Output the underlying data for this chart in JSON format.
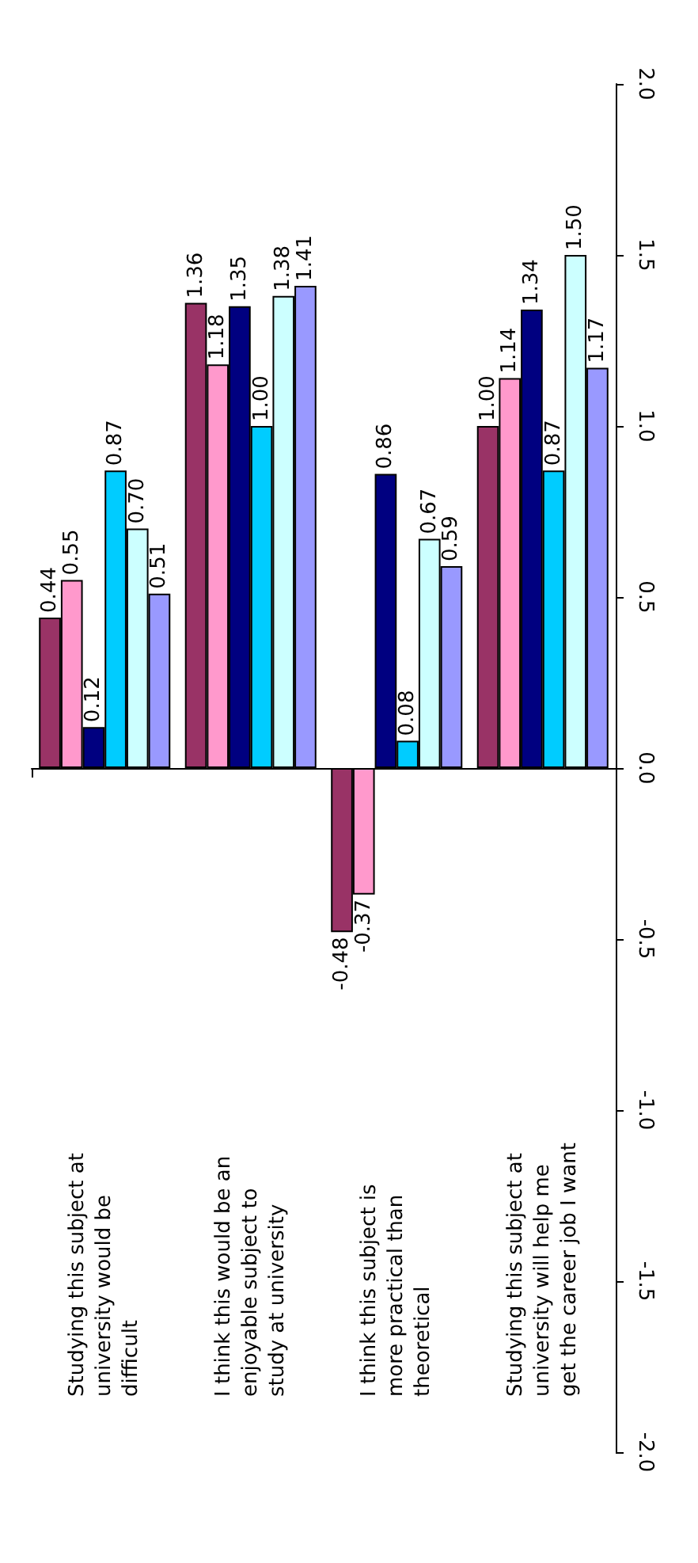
{
  "chart_data": {
    "type": "bar",
    "categories": [
      "Studying this subject at university would be difficult",
      "I think this would be an enjoyable subject to study at university",
      "I think this subject is more practical than theoretical",
      "Studying this subject at university will help me get the career job I want"
    ],
    "series": [
      {
        "color": "#993366",
        "values": [
          0.44,
          1.36,
          -0.48,
          1.0
        ],
        "value_labels": [
          "0.44",
          "1.36",
          "-0.48",
          "1.00"
        ]
      },
      {
        "color": "#ff99cc",
        "values": [
          0.55,
          1.18,
          -0.37,
          1.14
        ],
        "value_labels": [
          "0.55",
          "1.18",
          "-0.37",
          "1.14"
        ]
      },
      {
        "color": "#000080",
        "values": [
          0.12,
          1.35,
          0.86,
          1.34
        ],
        "value_labels": [
          "0.12",
          "1.35",
          "0.86",
          "1.34"
        ]
      },
      {
        "color": "#00ccff",
        "values": [
          0.87,
          1.0,
          0.08,
          0.87
        ],
        "value_labels": [
          "0.87",
          "1.00",
          "0.08",
          "0.87"
        ]
      },
      {
        "color": "#ccffff",
        "values": [
          0.7,
          1.38,
          0.67,
          1.5
        ],
        "value_labels": [
          "0.70",
          "1.38",
          "0.67",
          "1.50"
        ]
      },
      {
        "color": "#9999ff",
        "values": [
          0.51,
          1.41,
          0.59,
          1.17
        ],
        "value_labels": [
          "0.51",
          "1.41",
          "0.59",
          "1.17"
        ]
      }
    ],
    "ylim": [
      -2,
      2
    ],
    "yticks": [
      {
        "value": -2,
        "label": "-2.0"
      },
      {
        "value": -1.5,
        "label": "-1.5"
      },
      {
        "value": -1,
        "label": "-1.0"
      },
      {
        "value": -0.5,
        "label": "-0.5"
      },
      {
        "value": 0,
        "label": "0.0"
      },
      0.5,
      {
        "value": 1,
        "label": "1.0"
      },
      1.5,
      {
        "value": 2,
        "label": "2.0"
      }
    ]
  }
}
